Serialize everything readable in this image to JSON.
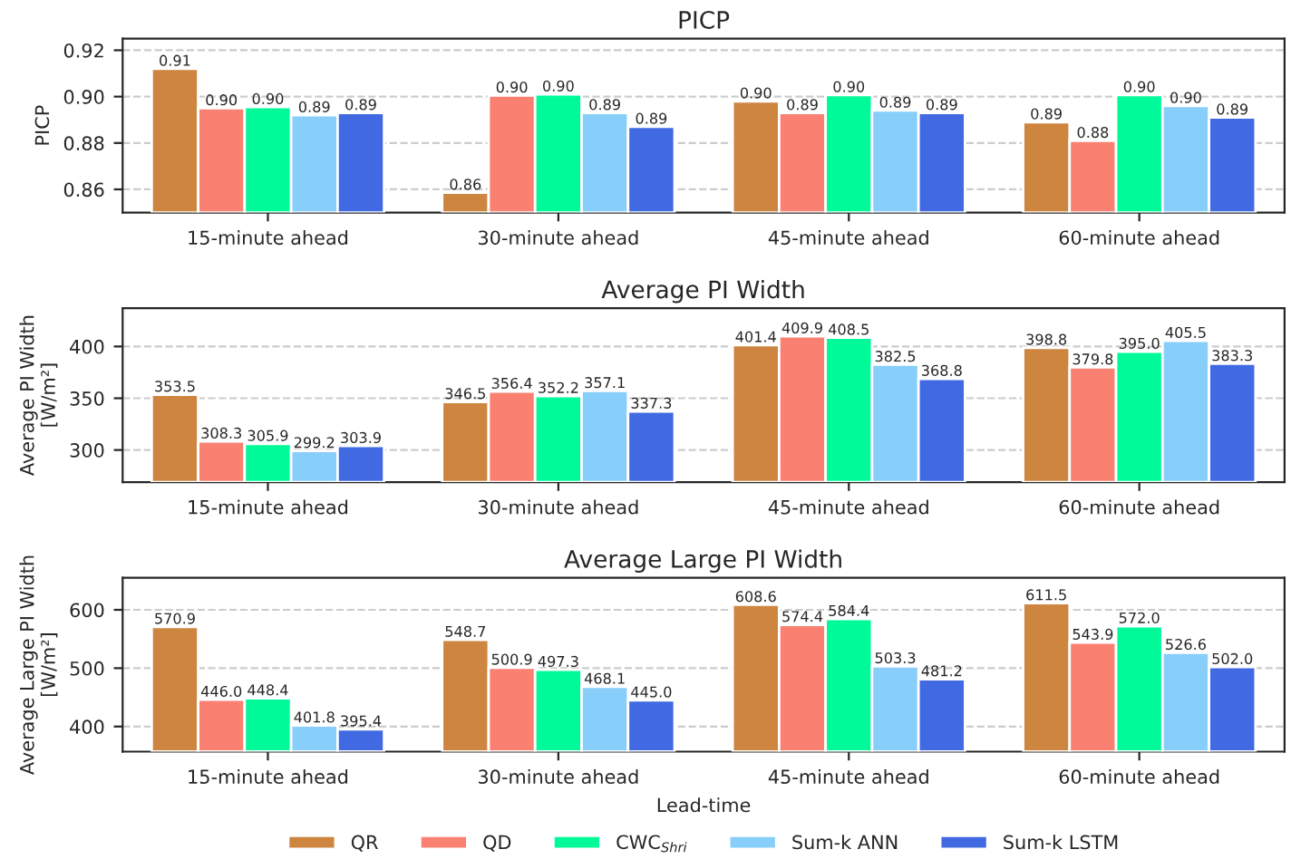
{
  "chart_data": [
    {
      "type": "bar",
      "title": "PICP",
      "ylabel": "PICP",
      "categories": [
        "15-minute ahead",
        "30-minute ahead",
        "45-minute ahead",
        "60-minute ahead"
      ],
      "ylim": [
        0.85,
        0.925
      ],
      "yticks": [
        {
          "value": 0.86,
          "label": "0.86"
        },
        {
          "value": 0.88,
          "label": "0.88"
        },
        {
          "value": 0.9,
          "label": "0.90"
        },
        {
          "value": 0.92,
          "label": "0.92"
        }
      ],
      "grid": "y",
      "series": [
        {
          "color": "#cd853f",
          "values": [
            0.912,
            0.8586,
            0.898,
            0.889
          ],
          "value_labels": [
            "0.91",
            "0.86",
            "0.90",
            "0.89"
          ]
        },
        {
          "color": "#fa8072",
          "values": [
            0.895,
            0.9005,
            0.893,
            0.881
          ],
          "value_labels": [
            "0.90",
            "0.90",
            "0.89",
            "0.88"
          ]
        },
        {
          "color": "#00fa9a",
          "values": [
            0.8955,
            0.901,
            0.9007,
            0.9007
          ],
          "value_labels": [
            "0.90",
            "0.90",
            "0.90",
            "0.90"
          ]
        },
        {
          "color": "#87cefa",
          "values": [
            0.892,
            0.893,
            0.894,
            0.896
          ],
          "value_labels": [
            "0.89",
            "0.89",
            "0.89",
            "0.90"
          ]
        },
        {
          "color": "#4169e1",
          "values": [
            0.893,
            0.887,
            0.893,
            0.891
          ],
          "value_labels": [
            "0.89",
            "0.89",
            "0.89",
            "0.89"
          ]
        }
      ]
    },
    {
      "type": "bar",
      "title": "Average PI Width",
      "ylabel": "Average PI Width\n[W/m²]",
      "categories": [
        "15-minute ahead",
        "30-minute ahead",
        "45-minute ahead",
        "60-minute ahead"
      ],
      "ylim": [
        269,
        437
      ],
      "yticks": [
        300,
        350,
        400
      ],
      "grid": "y",
      "series": [
        {
          "color": "#cd853f",
          "values": [
            353.5,
            346.5,
            401.4,
            398.8
          ],
          "value_labels": [
            "353.5",
            "346.5",
            "401.4",
            "398.8"
          ]
        },
        {
          "color": "#fa8072",
          "values": [
            308.3,
            356.4,
            409.9,
            379.8
          ],
          "value_labels": [
            "308.3",
            "356.4",
            "409.9",
            "379.8"
          ]
        },
        {
          "color": "#00fa9a",
          "values": [
            305.9,
            352.2,
            408.5,
            395.0
          ],
          "value_labels": [
            "305.9",
            "352.2",
            "408.5",
            "395.0"
          ]
        },
        {
          "color": "#87cefa",
          "values": [
            299.2,
            357.1,
            382.5,
            405.5
          ],
          "value_labels": [
            "299.2",
            "357.1",
            "382.5",
            "405.5"
          ]
        },
        {
          "color": "#4169e1",
          "values": [
            303.9,
            337.3,
            368.8,
            383.3
          ],
          "value_labels": [
            "303.9",
            "337.3",
            "368.8",
            "383.3"
          ]
        }
      ]
    },
    {
      "type": "bar",
      "title": "Average Large PI Width",
      "ylabel": "Average Large PI Width\n[W/m²]",
      "xlabel": "Lead-time",
      "categories": [
        "15-minute ahead",
        "30-minute ahead",
        "45-minute ahead",
        "60-minute ahead"
      ],
      "ylim": [
        357,
        655
      ],
      "yticks": [
        400,
        500,
        600
      ],
      "grid": "y",
      "legend": "bottom",
      "series": [
        {
          "name": "QR",
          "color": "#cd853f",
          "values": [
            570.9,
            548.7,
            608.6,
            611.5
          ],
          "value_labels": [
            "570.9",
            "548.7",
            "608.6",
            "611.5"
          ]
        },
        {
          "name": "QD",
          "color": "#fa8072",
          "values": [
            446.0,
            500.9,
            574.4,
            543.9
          ],
          "value_labels": [
            "446.0",
            "500.9",
            "574.4",
            "543.9"
          ]
        },
        {
          "name": "CWC$_{Shri}$",
          "color": "#00fa9a",
          "values": [
            448.4,
            497.3,
            584.4,
            572.0
          ],
          "value_labels": [
            "448.4",
            "497.3",
            "584.4",
            "572.0"
          ]
        },
        {
          "name": "Sum-k ANN",
          "color": "#87cefa",
          "values": [
            401.8,
            468.1,
            503.3,
            526.6
          ],
          "value_labels": [
            "401.8",
            "468.1",
            "503.3",
            "526.6"
          ]
        },
        {
          "name": "Sum-k LSTM",
          "color": "#4169e1",
          "values": [
            395.4,
            445.0,
            481.2,
            502.0
          ],
          "value_labels": [
            "395.4",
            "445.0",
            "481.2",
            "502.0"
          ]
        }
      ]
    }
  ]
}
